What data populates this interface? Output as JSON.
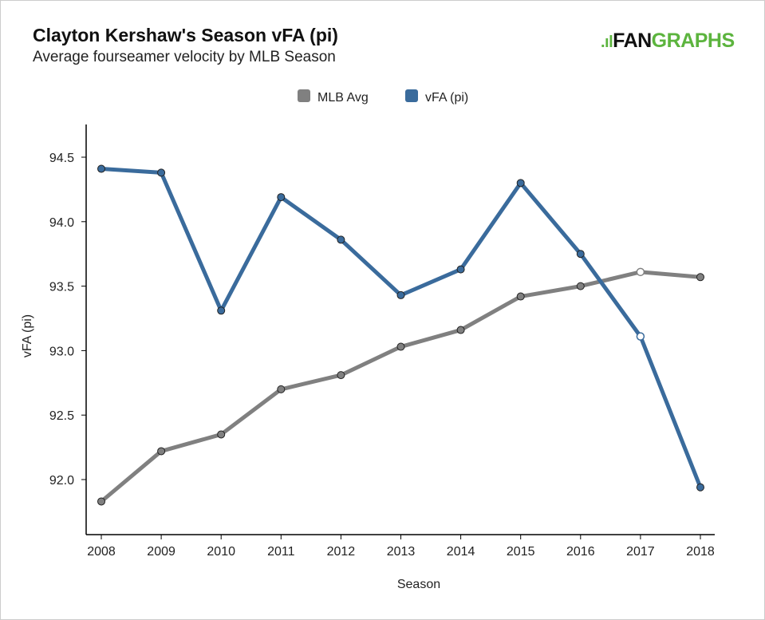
{
  "title": "Clayton Kershaw's Season vFA (pi)",
  "subtitle": "Average fourseamer velocity by MLB Season",
  "logo": {
    "fan": "FAN",
    "graphs": "GRAPHS"
  },
  "chart_data": {
    "type": "line",
    "title": "Clayton Kershaw's Season vFA (pi)",
    "xlabel": "Season",
    "ylabel": "vFA (pi)",
    "x": [
      2008,
      2009,
      2010,
      2011,
      2012,
      2013,
      2014,
      2015,
      2016,
      2017,
      2018
    ],
    "ylim": [
      91.7,
      94.75
    ],
    "yticks": [
      92.0,
      92.5,
      93.0,
      93.5,
      94.0,
      94.5
    ],
    "legend_position": "top-center",
    "series": [
      {
        "name": "MLB Avg",
        "color": "#808080",
        "values": [
          91.83,
          92.22,
          92.35,
          92.7,
          92.81,
          93.03,
          93.16,
          93.42,
          93.5,
          93.61,
          93.57
        ]
      },
      {
        "name": "vFA (pi)",
        "color": "#3a6b9c",
        "values": [
          94.41,
          94.38,
          93.31,
          94.19,
          93.86,
          93.43,
          93.63,
          94.3,
          93.75,
          93.11,
          91.94
        ]
      }
    ],
    "highlight_index": 9
  }
}
